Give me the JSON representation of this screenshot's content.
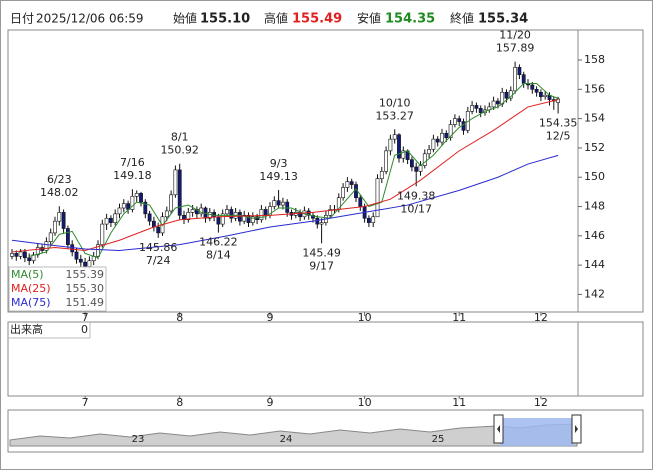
{
  "header": {
    "date_label": "日付",
    "date": "2025/12/06 06:59",
    "open_label": "始値",
    "open": "155.10",
    "high_label": "高値",
    "high": "155.49",
    "low_label": "安値",
    "low": "154.35",
    "close_label": "終値",
    "close": "155.34"
  },
  "chart_data": {
    "type": "candlestick",
    "categories": [
      null,
      null,
      null,
      null,
      null,
      null,
      null,
      null,
      null,
      null,
      null,
      null,
      null,
      null,
      null,
      null,
      null,
      "7",
      null,
      null,
      null,
      null,
      null,
      null,
      null,
      null,
      null,
      null,
      null,
      null,
      null,
      null,
      null,
      null,
      null,
      null,
      null,
      null,
      null,
      "8",
      null,
      null,
      null,
      null,
      null,
      null,
      null,
      null,
      null,
      null,
      null,
      null,
      null,
      null,
      null,
      null,
      null,
      null,
      null,
      null,
      "9",
      null,
      null,
      null,
      null,
      null,
      null,
      null,
      null,
      null,
      null,
      null,
      null,
      null,
      null,
      null,
      null,
      null,
      null,
      null,
      null,
      null,
      "10",
      null,
      null,
      null,
      null,
      null,
      null,
      null,
      null,
      null,
      null,
      null,
      null,
      null,
      null,
      null,
      null,
      null,
      null,
      null,
      null,
      null,
      "11",
      null,
      null,
      null,
      null,
      null,
      null,
      null,
      null,
      null,
      null,
      null,
      null,
      null,
      null,
      null,
      null,
      null,
      null,
      "12",
      null,
      null,
      null,
      null
    ],
    "ohlc": [
      [
        144.6,
        145.1,
        144.4,
        144.8
      ],
      [
        144.8,
        145.0,
        144.3,
        144.6
      ],
      [
        144.6,
        145.1,
        144.4,
        144.9
      ],
      [
        144.9,
        145.1,
        144.2,
        144.5
      ],
      [
        144.5,
        144.8,
        144.0,
        144.3
      ],
      [
        144.3,
        144.9,
        144.1,
        144.7
      ],
      [
        144.7,
        145.5,
        144.5,
        145.2
      ],
      [
        145.2,
        145.4,
        144.8,
        145.0
      ],
      [
        145.0,
        145.9,
        144.8,
        145.6
      ],
      [
        145.6,
        146.5,
        145.4,
        146.2
      ],
      [
        146.2,
        147.3,
        146.0,
        147.0
      ],
      [
        147.0,
        148.02,
        146.7,
        147.6
      ],
      [
        147.6,
        147.8,
        146.2,
        146.5
      ],
      [
        146.5,
        146.7,
        145.1,
        145.4
      ],
      [
        145.4,
        145.7,
        144.6,
        144.9
      ],
      [
        144.9,
        145.2,
        144.1,
        144.4
      ],
      [
        144.4,
        144.7,
        143.9,
        144.2
      ],
      [
        144.2,
        144.5,
        143.7,
        143.9
      ],
      [
        143.9,
        144.6,
        143.7,
        144.3
      ],
      [
        144.3,
        144.9,
        144.0,
        144.6
      ],
      [
        144.6,
        145.7,
        144.4,
        145.4
      ],
      [
        145.4,
        147.1,
        145.2,
        146.8
      ],
      [
        146.8,
        147.5,
        146.4,
        147.2
      ],
      [
        147.2,
        147.4,
        146.6,
        146.9
      ],
      [
        146.9,
        147.8,
        146.7,
        147.5
      ],
      [
        147.5,
        148.2,
        147.2,
        147.9
      ],
      [
        147.9,
        148.5,
        147.6,
        148.2
      ],
      [
        148.2,
        148.4,
        147.5,
        147.8
      ],
      [
        147.8,
        149.18,
        147.6,
        148.7
      ],
      [
        148.7,
        149.1,
        148.3,
        148.9
      ],
      [
        148.9,
        149.0,
        148.0,
        148.3
      ],
      [
        148.3,
        148.5,
        147.2,
        147.5
      ],
      [
        147.5,
        147.7,
        146.7,
        147.0
      ],
      [
        147.0,
        147.3,
        146.3,
        146.6
      ],
      [
        146.6,
        146.9,
        145.86,
        146.2
      ],
      [
        146.2,
        147.6,
        146.0,
        147.3
      ],
      [
        147.3,
        148.0,
        147.0,
        147.7
      ],
      [
        147.7,
        149.1,
        147.5,
        148.8
      ],
      [
        148.8,
        150.8,
        148.6,
        150.5
      ],
      [
        150.5,
        150.92,
        147.1,
        147.4
      ],
      [
        147.4,
        147.7,
        146.8,
        147.1
      ],
      [
        147.1,
        147.9,
        146.9,
        147.6
      ],
      [
        147.6,
        148.1,
        147.3,
        147.8
      ],
      [
        147.8,
        148.0,
        147.2,
        147.5
      ],
      [
        147.5,
        148.2,
        147.3,
        147.9
      ],
      [
        147.9,
        148.0,
        146.9,
        147.2
      ],
      [
        147.2,
        147.9,
        147.0,
        147.6
      ],
      [
        147.6,
        147.8,
        147.0,
        147.3
      ],
      [
        147.3,
        147.5,
        146.22,
        146.8
      ],
      [
        146.8,
        147.8,
        146.6,
        147.5
      ],
      [
        147.5,
        148.1,
        147.3,
        147.8
      ],
      [
        147.8,
        148.0,
        146.9,
        147.2
      ],
      [
        147.2,
        147.9,
        147.0,
        147.6
      ],
      [
        147.6,
        147.8,
        146.7,
        147.0
      ],
      [
        147.0,
        147.7,
        146.8,
        147.4
      ],
      [
        147.4,
        147.6,
        146.6,
        146.9
      ],
      [
        146.9,
        147.6,
        146.7,
        147.3
      ],
      [
        147.3,
        147.5,
        146.8,
        147.1
      ],
      [
        147.1,
        148.1,
        146.9,
        147.8
      ],
      [
        147.8,
        148.0,
        147.1,
        147.4
      ],
      [
        147.4,
        148.3,
        147.2,
        148.0
      ],
      [
        148.0,
        148.7,
        147.8,
        148.4
      ],
      [
        148.4,
        149.13,
        147.9,
        148.1
      ],
      [
        148.1,
        148.6,
        147.8,
        148.3
      ],
      [
        148.3,
        148.5,
        147.3,
        147.6
      ],
      [
        147.6,
        147.8,
        147.1,
        147.4
      ],
      [
        147.4,
        147.9,
        147.2,
        147.6
      ],
      [
        147.6,
        147.8,
        147.0,
        147.3
      ],
      [
        147.3,
        148.0,
        147.1,
        147.7
      ],
      [
        147.7,
        147.9,
        147.1,
        147.4
      ],
      [
        147.4,
        147.6,
        146.9,
        147.2
      ],
      [
        147.2,
        147.4,
        146.5,
        146.8
      ],
      [
        146.8,
        147.2,
        145.49,
        146.9
      ],
      [
        146.9,
        147.7,
        146.7,
        147.4
      ],
      [
        147.4,
        148.1,
        147.2,
        147.8
      ],
      [
        147.8,
        148.1,
        147.5,
        147.8
      ],
      [
        147.8,
        148.9,
        147.6,
        148.6
      ],
      [
        148.6,
        149.6,
        148.4,
        149.3
      ],
      [
        149.3,
        150.0,
        149.0,
        149.7
      ],
      [
        149.7,
        149.9,
        149.2,
        149.5
      ],
      [
        149.5,
        149.7,
        148.3,
        148.6
      ],
      [
        148.6,
        148.8,
        147.7,
        148.0
      ],
      [
        148.0,
        148.2,
        146.9,
        147.2
      ],
      [
        147.2,
        147.4,
        146.6,
        146.9
      ],
      [
        146.9,
        147.6,
        146.6,
        147.3
      ],
      [
        147.3,
        150.2,
        147.3,
        149.9
      ],
      [
        149.9,
        150.7,
        149.6,
        150.4
      ],
      [
        150.4,
        152.1,
        150.2,
        151.8
      ],
      [
        151.8,
        152.9,
        151.5,
        152.6
      ],
      [
        152.6,
        153.27,
        152.3,
        152.9
      ],
      [
        152.9,
        153.0,
        151.0,
        151.3
      ],
      [
        151.3,
        152.1,
        151.0,
        151.8
      ],
      [
        151.8,
        151.9,
        150.9,
        151.2
      ],
      [
        151.2,
        151.4,
        150.4,
        150.7
      ],
      [
        150.7,
        151.0,
        149.38,
        150.4
      ],
      [
        150.4,
        151.1,
        150.1,
        150.8
      ],
      [
        150.8,
        151.9,
        150.6,
        151.6
      ],
      [
        151.6,
        152.2,
        151.3,
        151.9
      ],
      [
        151.9,
        152.9,
        151.7,
        152.6
      ],
      [
        152.6,
        152.8,
        152.1,
        152.4
      ],
      [
        152.4,
        153.3,
        152.2,
        153.0
      ],
      [
        153.0,
        153.2,
        152.4,
        152.7
      ],
      [
        152.7,
        153.9,
        152.5,
        153.6
      ],
      [
        153.6,
        154.3,
        153.4,
        154.0
      ],
      [
        154.0,
        154.2,
        153.5,
        153.8
      ],
      [
        153.8,
        154.0,
        152.9,
        153.2
      ],
      [
        153.2,
        154.8,
        153.0,
        154.5
      ],
      [
        154.5,
        155.2,
        154.3,
        154.9
      ],
      [
        154.9,
        155.1,
        154.4,
        154.7
      ],
      [
        154.7,
        154.9,
        154.1,
        154.4
      ],
      [
        154.4,
        154.9,
        154.2,
        154.6
      ],
      [
        154.6,
        155.1,
        154.4,
        154.8
      ],
      [
        154.8,
        155.5,
        154.6,
        155.2
      ],
      [
        155.2,
        155.4,
        154.7,
        155.0
      ],
      [
        155.0,
        156.1,
        154.8,
        155.8
      ],
      [
        155.8,
        156.0,
        155.1,
        155.4
      ],
      [
        155.4,
        156.2,
        155.2,
        155.9
      ],
      [
        155.9,
        157.89,
        155.7,
        157.5
      ],
      [
        157.5,
        157.7,
        156.7,
        157.0
      ],
      [
        157.0,
        157.2,
        156.1,
        156.4
      ],
      [
        156.4,
        156.7,
        156.0,
        156.3
      ],
      [
        156.3,
        156.5,
        155.7,
        156.0
      ],
      [
        156.0,
        156.2,
        155.5,
        155.8
      ],
      [
        155.8,
        156.0,
        155.2,
        155.5
      ],
      [
        155.5,
        155.9,
        155.3,
        155.6
      ],
      [
        155.6,
        155.8,
        154.9,
        155.3
      ],
      [
        155.3,
        155.5,
        154.6,
        155.2
      ],
      [
        155.1,
        155.49,
        154.35,
        155.34
      ]
    ],
    "up_color": "#ffffff",
    "down_color": "#121c78",
    "outline_color": "#111111",
    "series": [
      {
        "name": "MA(5)",
        "color": "#2e8b2e",
        "legend_value": "155.39",
        "x": [
          4,
          8,
          11,
          14,
          17,
          20,
          23,
          26,
          29,
          32,
          35,
          38,
          41,
          44,
          47,
          50,
          53,
          56,
          59,
          62,
          65,
          68,
          71,
          74,
          77,
          80,
          83,
          86,
          89,
          92,
          95,
          98,
          101,
          104,
          107,
          110,
          113,
          116,
          119,
          122,
          125,
          127
        ],
        "values": [
          144.6,
          144.9,
          146.1,
          146.3,
          144.8,
          144.5,
          146.2,
          147.5,
          148.3,
          148.1,
          146.7,
          147.9,
          148.1,
          147.6,
          147.4,
          147.4,
          147.4,
          147.2,
          147.3,
          147.9,
          147.9,
          147.5,
          147.3,
          147.2,
          148.2,
          149.2,
          148.0,
          148.3,
          151.5,
          151.8,
          150.8,
          151.5,
          152.5,
          153.4,
          154.0,
          154.5,
          154.8,
          155.5,
          156.4,
          156.4,
          155.6,
          155.39
        ]
      },
      {
        "name": "MA(25)",
        "color": "#e02020",
        "legend_value": "155.30",
        "x": [
          0,
          10,
          17,
          25,
          33,
          39,
          48,
          60,
          70,
          82,
          88,
          95,
          104,
          112,
          120,
          127
        ],
        "values": [
          144.9,
          145.2,
          145.0,
          145.7,
          146.6,
          147.1,
          147.3,
          147.4,
          147.6,
          148.0,
          148.5,
          149.8,
          151.8,
          153.2,
          154.8,
          155.3
        ]
      },
      {
        "name": "MA(75)",
        "color": "#2a2ad0",
        "legend_value": "151.49",
        "x": [
          0,
          8,
          17,
          25,
          39,
          50,
          60,
          70,
          82,
          92,
          104,
          113,
          120,
          127
        ],
        "values": [
          145.7,
          145.4,
          145.1,
          145.0,
          145.4,
          146.0,
          146.6,
          147.0,
          147.6,
          148.1,
          149.1,
          150.0,
          150.9,
          151.49
        ]
      }
    ],
    "annotations": [
      {
        "label": "6/23",
        "value": 148.02,
        "x": 11
      },
      {
        "label": "7/16",
        "value": 149.18,
        "x": 28
      },
      {
        "label": "7/24",
        "value": 145.86,
        "x": 34
      },
      {
        "label": "8/1",
        "value": 150.92,
        "x": 39
      },
      {
        "label": "8/14",
        "value": 146.22,
        "x": 48
      },
      {
        "label": "9/3",
        "value": 149.13,
        "x": 62
      },
      {
        "label": "9/17",
        "value": 145.49,
        "x": 72
      },
      {
        "label": "10/10",
        "value": 153.27,
        "x": 89
      },
      {
        "label": "10/17",
        "value": 149.38,
        "x": 94
      },
      {
        "label": "11/20",
        "value": 157.89,
        "x": 117
      },
      {
        "label": "12/5",
        "value": 154.35,
        "x": 127
      }
    ],
    "ylim": [
      140.8,
      160.05
    ],
    "yticks": [
      142,
      144,
      146,
      148,
      150,
      152,
      154,
      156,
      158
    ],
    "volume": {
      "label": "出来高",
      "value": 0
    }
  },
  "navigator": {
    "labels": [
      "23",
      "24",
      "25"
    ]
  }
}
